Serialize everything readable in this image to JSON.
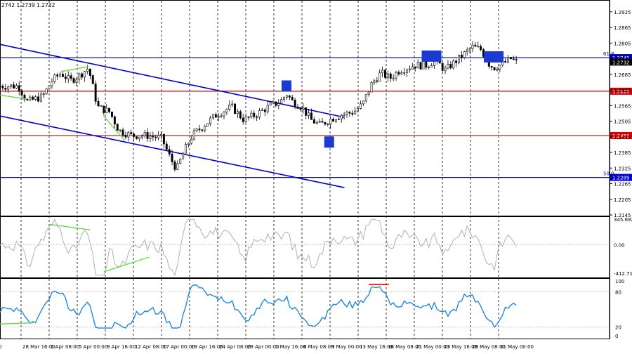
{
  "chart_data": {
    "type": "candlestick",
    "header_text": "2742 1.2739 1.2732",
    "price_axis": {
      "ylim": [
        1.2145,
        1.2965
      ],
      "ticks": [
        "1.2925",
        "1.2865",
        "1.2805",
        "1.2745",
        "1.2685",
        "1.2625",
        "1.2565",
        "1.2505",
        "1.2445",
        "1.2385",
        "1.2325",
        "1.2265",
        "1.2205",
        "1.2145"
      ]
    },
    "x_axis": {
      "labels": [
        "28 Mar 16:00",
        "2 Apr 08:00",
        "5 Apr 00:00",
        "9 Apr 16:00",
        "12 Apr 08:00",
        "17 Apr 00:00",
        "19 Apr 16:00",
        "24 Apr 08:00",
        "29 Apr 00:00",
        "1 May 16:00",
        "6 May 08:00",
        "9 May 00:00",
        "13 May 16:00",
        "16 May 08:00",
        "21 May 00:00",
        "23 May 16:00",
        "28 May 08:00",
        "31 May 00:00"
      ],
      "first_label_fragment": "0"
    },
    "current_price": {
      "value": 1.2732,
      "label": "1.2732"
    },
    "levels": [
      {
        "value": 1.2749,
        "label": "1.2749",
        "fib_label": "61.8",
        "color": "#0000cc"
      },
      {
        "value": 1.262,
        "label": "1.2620",
        "fib_label": "",
        "color": "#dd0000"
      },
      {
        "value": 1.245,
        "label": "1.2450",
        "fib_label": "",
        "color": "#dd0000"
      },
      {
        "value": 1.2289,
        "label": "1.2289",
        "fib_label": "50.0",
        "color": "#0000cc"
      }
    ],
    "channel": {
      "color": "#0000cc",
      "upper": {
        "x": [
          0,
          0.565
        ],
        "y": [
          1.28,
          1.252
        ]
      },
      "lower": {
        "x": [
          0,
          0.565
        ],
        "y": [
          1.2525,
          1.225
        ]
      }
    },
    "candles": {
      "count": 190,
      "x_range": [
        0.0,
        0.847
      ],
      "close_path": [
        [
          0.0,
          1.264
        ],
        [
          0.03,
          1.264
        ],
        [
          0.045,
          1.258
        ],
        [
          0.07,
          1.26
        ],
        [
          0.085,
          1.266
        ],
        [
          0.1,
          1.269
        ],
        [
          0.115,
          1.266
        ],
        [
          0.13,
          1.268
        ],
        [
          0.145,
          1.271
        ],
        [
          0.15,
          1.266
        ],
        [
          0.16,
          1.256
        ],
        [
          0.18,
          1.254
        ],
        [
          0.195,
          1.247
        ],
        [
          0.215,
          1.245
        ],
        [
          0.24,
          1.245
        ],
        [
          0.265,
          1.244
        ],
        [
          0.28,
          1.236
        ],
        [
          0.29,
          1.232
        ],
        [
          0.3,
          1.238
        ],
        [
          0.315,
          1.245
        ],
        [
          0.335,
          1.249
        ],
        [
          0.355,
          1.253
        ],
        [
          0.38,
          1.256
        ],
        [
          0.4,
          1.251
        ],
        [
          0.42,
          1.253
        ],
        [
          0.44,
          1.256
        ],
        [
          0.46,
          1.258
        ],
        [
          0.47,
          1.261
        ],
        [
          0.48,
          1.258
        ],
        [
          0.495,
          1.256
        ],
        [
          0.51,
          1.251
        ],
        [
          0.525,
          1.249
        ],
        [
          0.54,
          1.251
        ],
        [
          0.56,
          1.253
        ],
        [
          0.58,
          1.254
        ],
        [
          0.595,
          1.257
        ],
        [
          0.61,
          1.265
        ],
        [
          0.625,
          1.269
        ],
        [
          0.64,
          1.267
        ],
        [
          0.655,
          1.27
        ],
        [
          0.68,
          1.272
        ],
        [
          0.7,
          1.272
        ],
        [
          0.715,
          1.274
        ],
        [
          0.73,
          1.27
        ],
        [
          0.745,
          1.273
        ],
        [
          0.76,
          1.276
        ],
        [
          0.775,
          1.279
        ],
        [
          0.79,
          1.278
        ],
        [
          0.8,
          1.273
        ],
        [
          0.81,
          1.271
        ],
        [
          0.825,
          1.2725
        ],
        [
          0.838,
          1.2745
        ],
        [
          0.847,
          1.2732
        ]
      ]
    },
    "markers": [
      {
        "x": 0.47,
        "y": 1.264,
        "color": "#1a3ad1"
      },
      {
        "x": 0.54,
        "y": 1.2425,
        "color": "#1a3ad1"
      },
      {
        "x": 0.708,
        "y": 1.2755,
        "color": "#1a3ad1"
      },
      {
        "x": 0.81,
        "y": 1.2752,
        "color": "#1a3ad1"
      }
    ],
    "divergence_lines_main": [
      {
        "x": [
          0.1,
          0.145
        ],
        "y": [
          1.2695,
          1.2715
        ],
        "color": "#66dd44"
      },
      {
        "x": [
          0.0,
          0.045
        ],
        "y": [
          1.2605,
          1.259
        ],
        "color": "#66dd44"
      },
      {
        "x": [
          0.17,
          0.205
        ],
        "y": [
          1.2525,
          1.243
        ],
        "color": "#66dd44"
      }
    ],
    "cci": {
      "label_top": "345.6926",
      "label_zero": "0.00",
      "label_bottom": "-412.715",
      "ylim": [
        -412.715,
        345.6926
      ],
      "color": "#b0b0b0",
      "divergence_lines": [
        {
          "x": [
            0.082,
            0.148
          ],
          "y": [
            260,
            190
          ],
          "color": "#66dd44"
        },
        {
          "x": [
            0.17,
            0.245
          ],
          "y": [
            -350,
            -160
          ],
          "color": "#66dd44"
        }
      ]
    },
    "rsi": {
      "label_top": "100",
      "label_80": "80",
      "label_20": "20",
      "label_bottom": "0",
      "ylim": [
        0,
        100
      ],
      "color": "#2288dd",
      "marker_line": {
        "x": [
          0.605,
          0.638
        ],
        "y": [
          93,
          93
        ],
        "color": "#dd0000"
      },
      "divergence_lines": [
        {
          "x": [
            0.0,
            0.055
          ],
          "y": [
            25,
            27
          ],
          "color": "#66dd44"
        }
      ]
    }
  }
}
